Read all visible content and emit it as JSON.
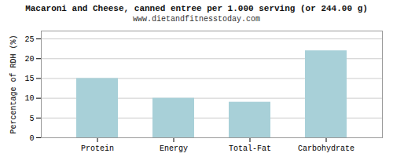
{
  "chart_data": {
    "type": "bar",
    "title": "Macaroni and Cheese, canned entree per 1.000 serving (or 244.00 g)",
    "subtitle": "www.dietandfitnesstoday.com",
    "categories": [
      "Protein",
      "Energy",
      "Total-Fat",
      "Carbohydrate"
    ],
    "values": [
      15.0,
      10.0,
      9.0,
      22.0
    ],
    "color": "#a8d0d8",
    "ylabel": "Percentage of RDH (%)",
    "ylim": [
      0,
      27
    ],
    "yticks": [
      0,
      5,
      10,
      15,
      20,
      25
    ],
    "grid": true
  }
}
